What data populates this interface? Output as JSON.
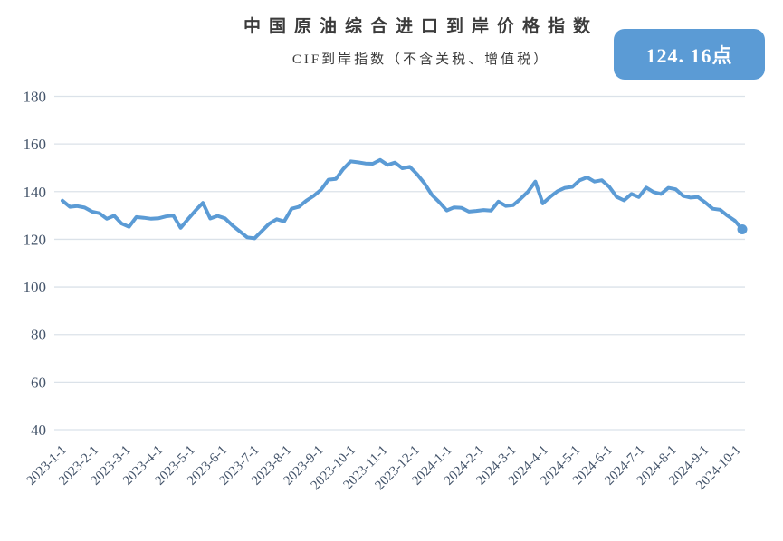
{
  "title": "中国原油综合进口到岸价格指数",
  "subtitle": "CIF到岸指数（不含关税、增值税）",
  "badge": {
    "label": "124. 16点",
    "value": 124.16,
    "color": "#5b9bd5",
    "text_color": "#ffffff"
  },
  "colors": {
    "line": "#5b9bd5",
    "gridline": "#dbe2e9",
    "axis_label": "#44546a"
  },
  "chart_data": {
    "type": "line",
    "title": "中国原油综合进口到岸价格指数",
    "subtitle": "CIF到岸指数（不含关税、增值税）",
    "frequency": "weekly",
    "x_start_label": "2023-1-1",
    "x_end_label": "2024-10-1",
    "x_tick_labels": [
      "2023-1-1",
      "2023-2-1",
      "2023-3-1",
      "2023-4-1",
      "2023-5-1",
      "2023-6-1",
      "2023-7-1",
      "2023-8-1",
      "2023-9-1",
      "2023-10-1",
      "2023-11-1",
      "2023-12-1",
      "2024-1-1",
      "2024-2-1",
      "2024-3-1",
      "2024-4-1",
      "2024-5-1",
      "2024-6-1",
      "2024-7-1",
      "2024-8-1",
      "2024-9-1",
      "2024-10-1"
    ],
    "ylim": [
      40,
      180
    ],
    "y_ticks": [
      180,
      160,
      140,
      120,
      100,
      80,
      60,
      40
    ],
    "grid": "horizontal",
    "legend": "none",
    "end_point_marker": true,
    "last_value": 124.16,
    "series": [
      {
        "name": "CIF到岸指数",
        "color": "#5b9bd5",
        "values": [
          136.2,
          133.6,
          133.9,
          133.3,
          131.6,
          130.9,
          128.6,
          129.9,
          126.6,
          125.2,
          129.3,
          129.0,
          128.6,
          128.8,
          129.6,
          130.0,
          124.8,
          128.5,
          132.0,
          135.3,
          128.7,
          129.8,
          128.8,
          125.8,
          123.3,
          120.8,
          120.4,
          123.5,
          126.6,
          128.4,
          127.5,
          132.8,
          133.6,
          136.2,
          138.2,
          140.8,
          145.0,
          145.3,
          149.5,
          152.7,
          152.3,
          151.8,
          151.7,
          153.3,
          151.2,
          152.2,
          149.8,
          150.4,
          147.3,
          143.4,
          138.6,
          135.6,
          132.1,
          133.4,
          133.2,
          131.6,
          131.9,
          132.3,
          132.0,
          135.8,
          134.0,
          134.3,
          137.0,
          140.0,
          144.2,
          135.0,
          137.8,
          140.2,
          141.6,
          142.0,
          144.8,
          146.0,
          144.2,
          144.8,
          142.0,
          137.8,
          136.3,
          139.0,
          137.7,
          141.7,
          139.8,
          139.0,
          141.6,
          141.0,
          138.2,
          137.5,
          137.7,
          135.4,
          132.8,
          132.4,
          129.9,
          127.8,
          124.16
        ]
      }
    ]
  }
}
